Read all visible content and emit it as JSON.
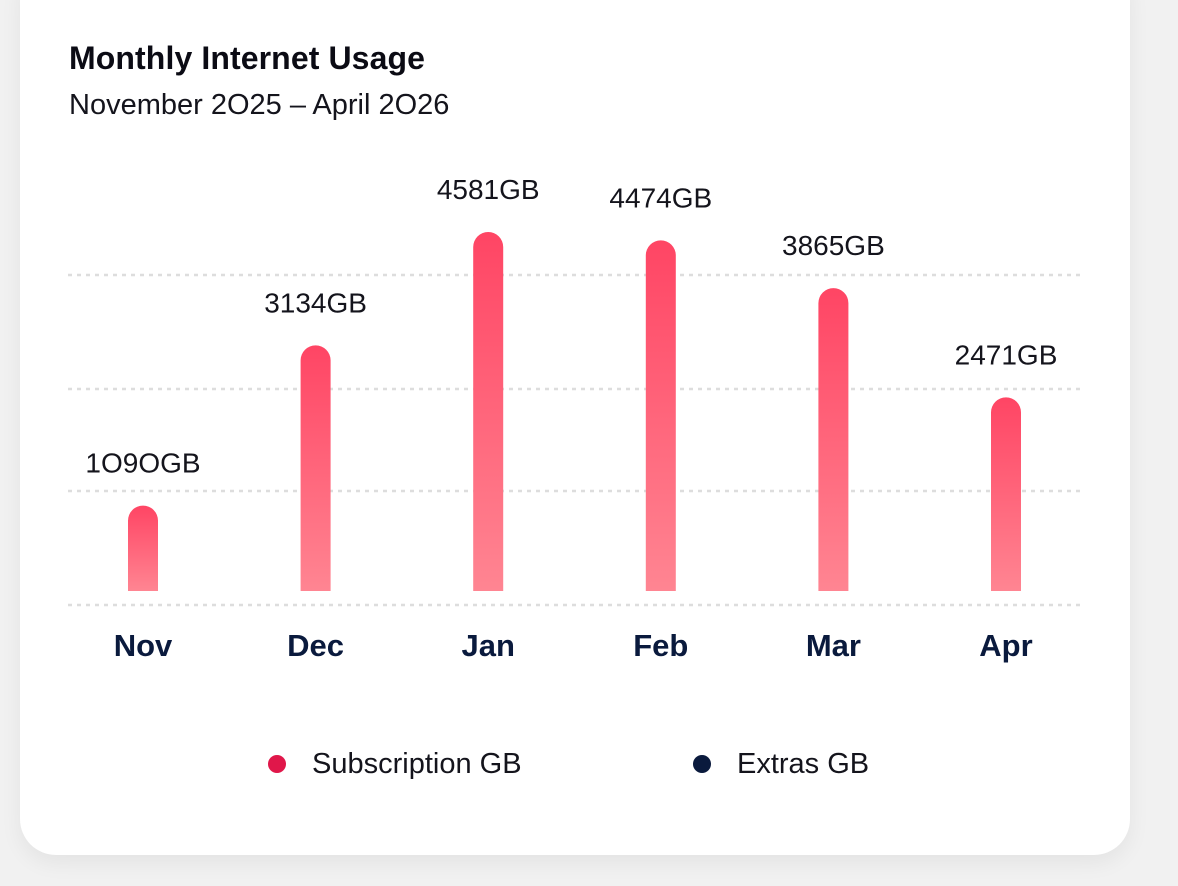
{
  "chart_data": {
    "type": "bar",
    "title": "Monthly Internet Usage",
    "subtitle": "November 2O25 – April 2O26",
    "categories": [
      "Nov",
      "Dec",
      "Jan",
      "Feb",
      "Mar",
      "Apr"
    ],
    "series": [
      {
        "name": "Subscription GB",
        "values": [
          1090,
          3134,
          4581,
          4474,
          3865,
          2471
        ],
        "labels": [
          "1O9OGB",
          "3134GB",
          "4581GB",
          "4474GB",
          "3865GB",
          "2471GB"
        ],
        "color": "#e0174a"
      },
      {
        "name": "Extras GB",
        "values": [
          0,
          0,
          0,
          0,
          0,
          0
        ],
        "color": "#0a1a3d"
      }
    ],
    "ylim": [
      0,
      4800
    ],
    "grid": true,
    "legend_position": "bottom"
  },
  "colors": {
    "bar_top": "#ff4564",
    "bar_bottom": "#ff8592",
    "category_label": "#0a1a3d",
    "grid": "#dddddd"
  }
}
